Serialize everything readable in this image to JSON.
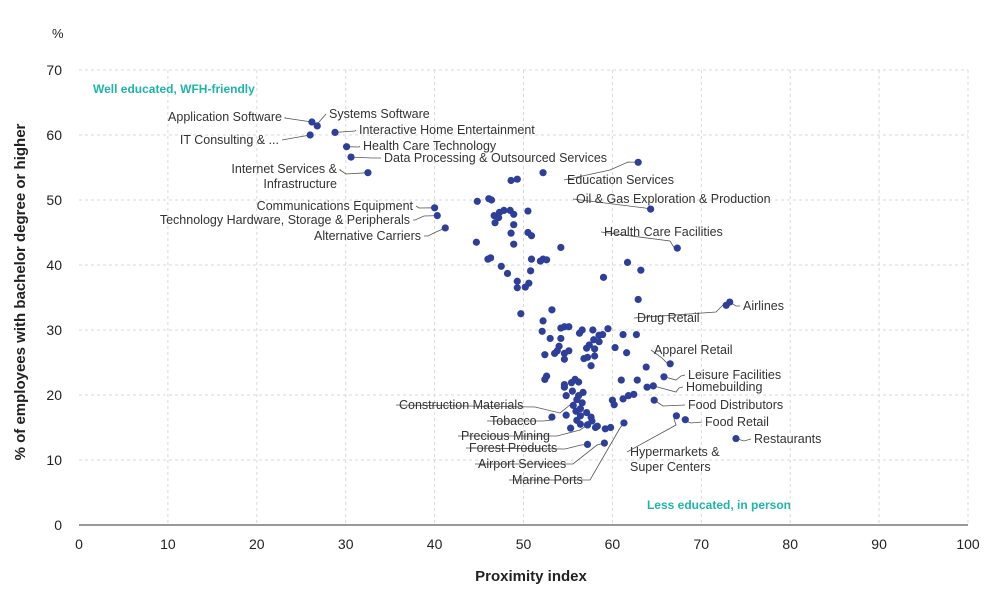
{
  "chart_data": {
    "type": "scatter",
    "xlabel": "Proximity index",
    "ylabel": "% of employees with bachelor degree or higher",
    "y_unit": "%",
    "xlim": [
      0,
      100
    ],
    "ylim": [
      0,
      70
    ],
    "x_ticks": [
      "0",
      "10",
      "20",
      "30",
      "40",
      "50",
      "60",
      "70",
      "80",
      "90",
      "100"
    ],
    "y_ticks": [
      "0",
      "10",
      "20",
      "30",
      "40",
      "50",
      "60",
      "70"
    ],
    "grid": true,
    "annotations": {
      "top_left": "Well educated, WFH-friendly",
      "bottom_right": "Less educated, in person",
      "color": "#1fb5a8"
    },
    "point_color": "#2e3f99",
    "labeled_points": [
      {
        "name": "Application Software",
        "x": 26.2,
        "y": 62.0
      },
      {
        "name": "Systems Software",
        "x": 26.8,
        "y": 61.4
      },
      {
        "name": "IT Consulting & ...",
        "x": 26.0,
        "y": 60.0
      },
      {
        "name": "Interactive Home Entertainment",
        "x": 28.8,
        "y": 60.4
      },
      {
        "name": "Health Care Technology",
        "x": 30.1,
        "y": 58.2
      },
      {
        "name": "Data Processing & Outsourced Services",
        "x": 30.6,
        "y": 56.6
      },
      {
        "name": "Internet Services & Infrastructure",
        "x": 32.5,
        "y": 54.2
      },
      {
        "name": "Education Services",
        "x": 62.9,
        "y": 55.8
      },
      {
        "name": "Oil & Gas Exploration & Production",
        "x": 64.3,
        "y": 48.6
      },
      {
        "name": "Communications Equipment",
        "x": 40.0,
        "y": 48.8
      },
      {
        "name": "Technology Hardware, Storage & Peripherals",
        "x": 40.3,
        "y": 47.6
      },
      {
        "name": "Alternative Carriers",
        "x": 41.2,
        "y": 45.7
      },
      {
        "name": "Health Care Facilities",
        "x": 67.3,
        "y": 42.6
      },
      {
        "name": "Airlines",
        "x": 73.2,
        "y": 34.3
      },
      {
        "name": "Drug Retail",
        "x": 72.8,
        "y": 33.8
      },
      {
        "name": "Apparel Retail",
        "x": 66.5,
        "y": 24.8
      },
      {
        "name": "Leisure Facilities",
        "x": 65.8,
        "y": 22.8
      },
      {
        "name": "Homebuilding",
        "x": 64.6,
        "y": 21.4
      },
      {
        "name": "Food Distributors",
        "x": 64.7,
        "y": 19.2
      },
      {
        "name": "Food Retail",
        "x": 68.2,
        "y": 16.2
      },
      {
        "name": "Restaurants",
        "x": 73.9,
        "y": 13.3
      },
      {
        "name": "Hypermarkets & Super Centers",
        "x": 67.2,
        "y": 16.8
      },
      {
        "name": "Construction Materials",
        "x": 56.0,
        "y": 19.3
      },
      {
        "name": "Tobacco",
        "x": 53.2,
        "y": 16.6
      },
      {
        "name": "Precious Mining",
        "x": 57.2,
        "y": 15.4
      },
      {
        "name": "Forest Products",
        "x": 57.2,
        "y": 12.4
      },
      {
        "name": "Airport Services",
        "x": 59.1,
        "y": 12.6
      },
      {
        "name": "Marine Ports",
        "x": 61.3,
        "y": 15.7
      }
    ],
    "unlabeled_points": [
      [
        48.6,
        53.0
      ],
      [
        49.3,
        53.2
      ],
      [
        52.2,
        54.2
      ],
      [
        46.1,
        50.2
      ],
      [
        46.4,
        50.0
      ],
      [
        44.8,
        49.8
      ],
      [
        47.3,
        48.1
      ],
      [
        47.8,
        48.4
      ],
      [
        48.5,
        48.4
      ],
      [
        50.5,
        48.3
      ],
      [
        48.9,
        47.8
      ],
      [
        46.7,
        47.6
      ],
      [
        47.2,
        47.3
      ],
      [
        46.8,
        46.5
      ],
      [
        48.9,
        46.2
      ],
      [
        50.5,
        45.0
      ],
      [
        48.6,
        44.9
      ],
      [
        50.9,
        44.5
      ],
      [
        44.7,
        43.5
      ],
      [
        48.9,
        43.2
      ],
      [
        54.2,
        42.7
      ],
      [
        46.3,
        41.1
      ],
      [
        46.0,
        40.9
      ],
      [
        52.2,
        40.9
      ],
      [
        52.6,
        40.8
      ],
      [
        51.9,
        40.6
      ],
      [
        50.9,
        40.9
      ],
      [
        61.7,
        40.4
      ],
      [
        47.5,
        39.8
      ],
      [
        50.8,
        39.1
      ],
      [
        63.2,
        39.2
      ],
      [
        48.2,
        38.7
      ],
      [
        59.0,
        38.1
      ],
      [
        50.6,
        37.2
      ],
      [
        49.3,
        37.5
      ],
      [
        50.2,
        36.6
      ],
      [
        49.3,
        36.5
      ],
      [
        62.9,
        34.7
      ],
      [
        49.7,
        32.5
      ],
      [
        53.2,
        33.1
      ],
      [
        52.2,
        31.4
      ],
      [
        54.6,
        30.5
      ],
      [
        55.1,
        30.5
      ],
      [
        54.2,
        30.3
      ],
      [
        56.6,
        30.0
      ],
      [
        57.8,
        30.0
      ],
      [
        59.5,
        30.2
      ],
      [
        52.1,
        29.8
      ],
      [
        56.3,
        29.5
      ],
      [
        58.5,
        29.2
      ],
      [
        58.9,
        29.3
      ],
      [
        61.2,
        29.3
      ],
      [
        62.7,
        29.3
      ],
      [
        53.0,
        28.7
      ],
      [
        54.2,
        28.7
      ],
      [
        57.9,
        28.5
      ],
      [
        58.5,
        28.2
      ],
      [
        57.4,
        27.7
      ],
      [
        54.0,
        27.5
      ],
      [
        57.1,
        27.2
      ],
      [
        58.0,
        27.1
      ],
      [
        60.3,
        27.3
      ],
      [
        53.8,
        26.8
      ],
      [
        55.1,
        26.8
      ],
      [
        54.6,
        26.4
      ],
      [
        52.4,
        26.2
      ],
      [
        53.5,
        26.4
      ],
      [
        58.0,
        26.0
      ],
      [
        57.2,
        25.8
      ],
      [
        61.6,
        26.5
      ],
      [
        56.8,
        25.6
      ],
      [
        54.6,
        25.5
      ],
      [
        57.6,
        24.5
      ],
      [
        63.8,
        24.3
      ],
      [
        52.6,
        22.9
      ],
      [
        52.4,
        22.4
      ],
      [
        54.6,
        21.6
      ],
      [
        55.4,
        21.9
      ],
      [
        56.2,
        22.0
      ],
      [
        55.8,
        22.4
      ],
      [
        54.6,
        21.2
      ],
      [
        56.7,
        20.4
      ],
      [
        61.0,
        22.3
      ],
      [
        62.8,
        22.3
      ],
      [
        63.9,
        21.2
      ],
      [
        55.5,
        20.6
      ],
      [
        54.8,
        19.9
      ],
      [
        56.2,
        19.9
      ],
      [
        60.0,
        19.2
      ],
      [
        61.2,
        19.4
      ],
      [
        61.8,
        19.9
      ],
      [
        62.4,
        20.1
      ],
      [
        60.2,
        18.5
      ],
      [
        56.6,
        18.8
      ],
      [
        55.6,
        18.4
      ],
      [
        56.4,
        17.9
      ],
      [
        55.9,
        17.5
      ],
      [
        57.1,
        17.3
      ],
      [
        56.4,
        16.8
      ],
      [
        57.6,
        16.6
      ],
      [
        54.8,
        16.9
      ],
      [
        56.0,
        16.1
      ],
      [
        57.7,
        16.0
      ],
      [
        57.2,
        15.4
      ],
      [
        58.1,
        15.0
      ],
      [
        56.4,
        15.5
      ],
      [
        55.3,
        14.9
      ],
      [
        59.2,
        14.8
      ],
      [
        59.8,
        15.0
      ],
      [
        58.3,
        15.2
      ]
    ]
  }
}
